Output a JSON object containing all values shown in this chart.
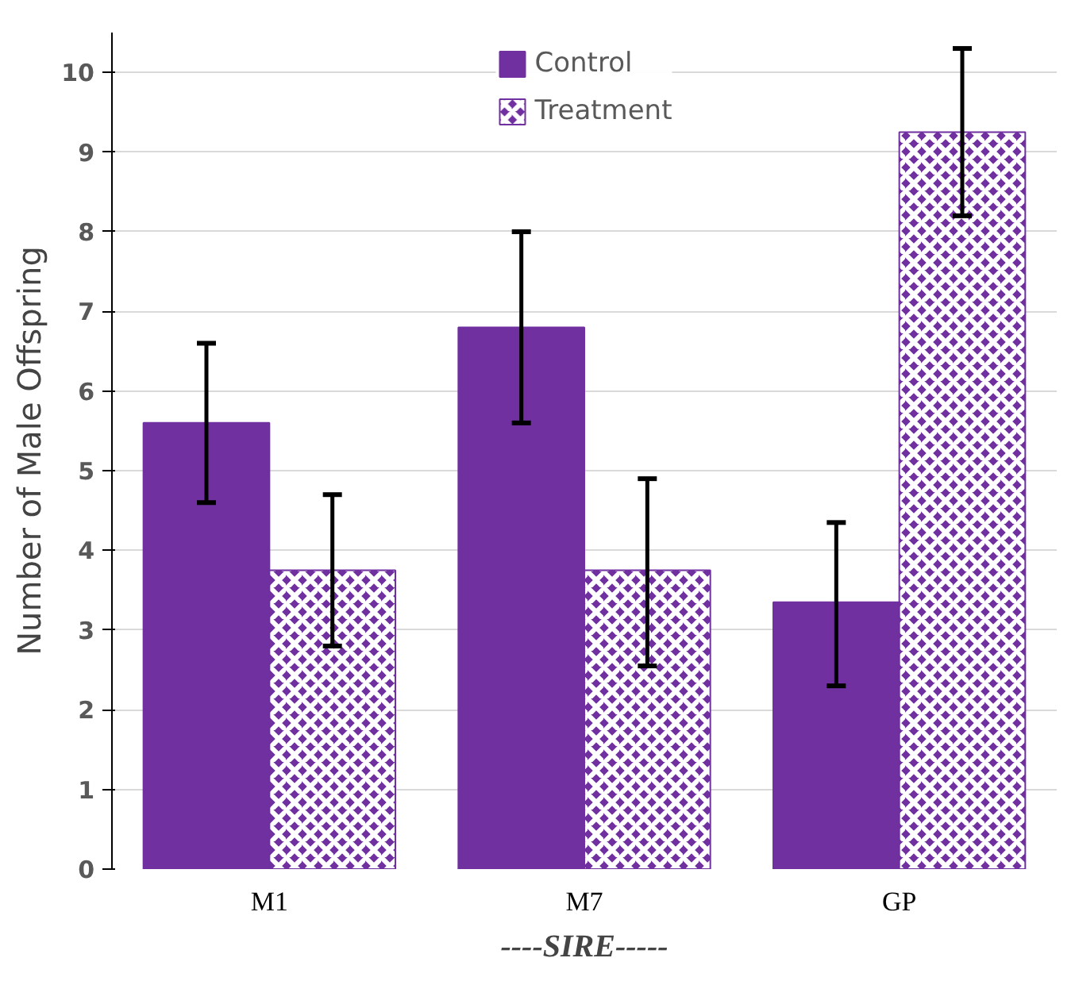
{
  "chart_data": {
    "type": "bar",
    "xlabel": "----SIRE-----",
    "ylabel": "Number of Male Offspring",
    "categories": [
      "M1",
      "M7",
      "GP"
    ],
    "series": [
      {
        "name": "Control",
        "color": "#7030a0",
        "values": [
          5.6,
          6.8,
          3.35
        ],
        "errors": [
          [
            4.6,
            6.6
          ],
          [
            5.6,
            8.0
          ],
          [
            2.3,
            4.35
          ]
        ]
      },
      {
        "name": "Treatment",
        "color": "#7030a0",
        "values": [
          3.75,
          3.75,
          9.25
        ],
        "errors": [
          [
            2.8,
            4.7
          ],
          [
            2.55,
            4.9
          ],
          [
            8.2,
            10.3
          ]
        ]
      }
    ],
    "ylim": [
      0,
      10.5
    ],
    "yticks": [
      0,
      1,
      2,
      3,
      4,
      5,
      6,
      7,
      8,
      9,
      10
    ],
    "grid": "y",
    "legend": "top"
  }
}
